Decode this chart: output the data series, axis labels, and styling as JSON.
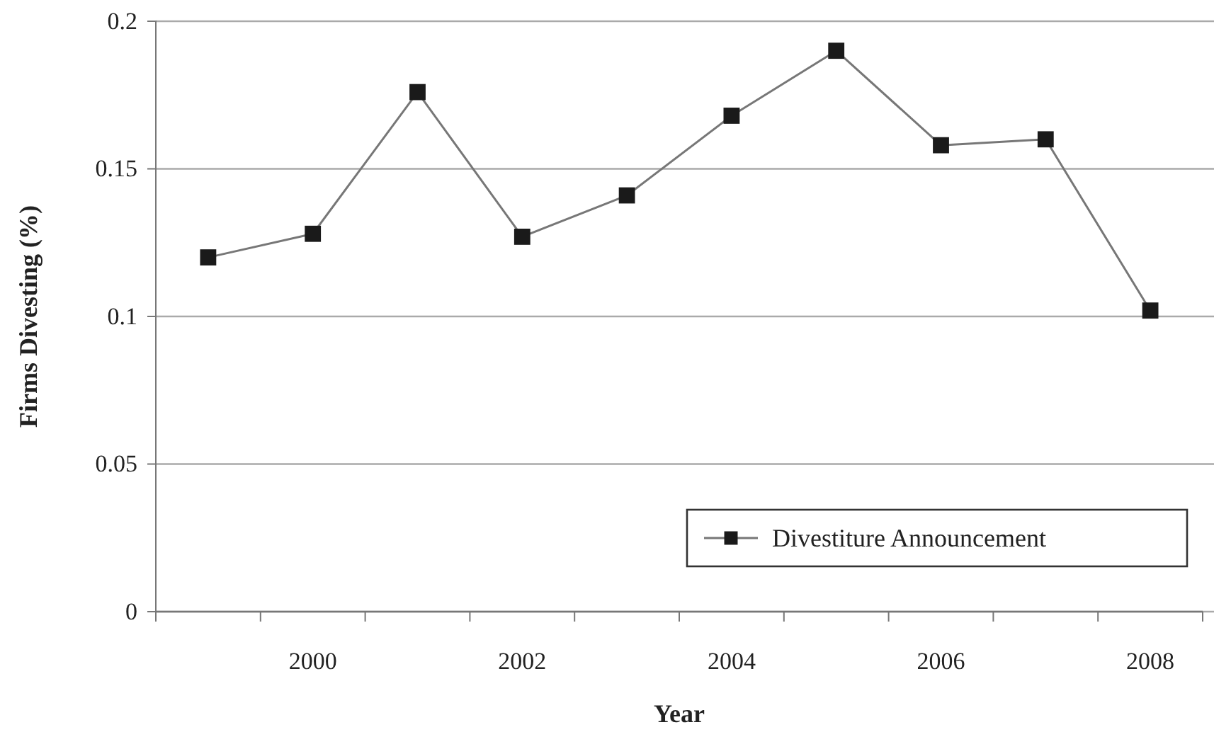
{
  "chart_data": {
    "type": "line",
    "xlabel": "Year",
    "ylabel": "Firms Divesting (%)",
    "categories": [
      null,
      "2000",
      null,
      "2002",
      null,
      "2004",
      null,
      "2006",
      null,
      "2008"
    ],
    "series": [
      {
        "name": "Divestiture Announcement",
        "color": "#1a1a1a",
        "values": [
          0.12,
          0.128,
          0.176,
          0.127,
          0.141,
          0.168,
          0.19,
          0.158,
          0.16,
          0.102
        ]
      }
    ],
    "ylim": [
      0,
      0.2
    ],
    "yticks": [
      0,
      0.05,
      0.1,
      0.15,
      0.2
    ],
    "grid": "y",
    "legend": "bottom right",
    "marker": "square",
    "line_style": "solid"
  }
}
